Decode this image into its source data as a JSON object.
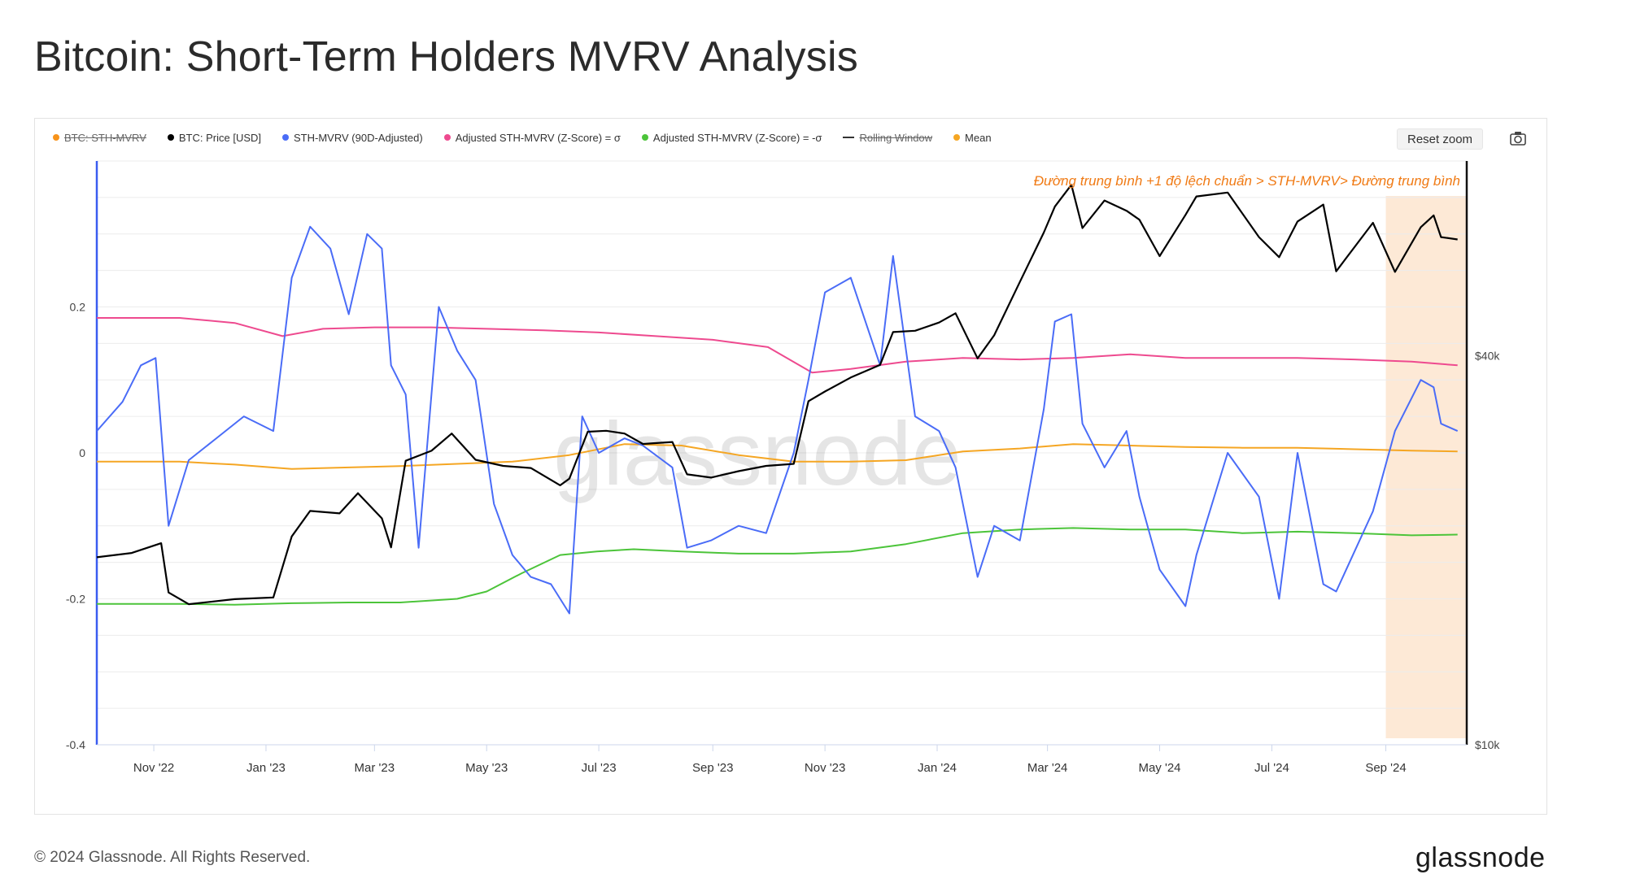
{
  "page": {
    "title": "Bitcoin: Short-Term Holders MVRV Analysis",
    "copyright": "© 2024 Glassnode. All Rights Reserved.",
    "logo": "glassnode"
  },
  "toolbar": {
    "reset_zoom": "Reset zoom",
    "camera_icon": "camera-icon"
  },
  "legend": [
    {
      "label": "BTC: STH-MVRV",
      "color": "#f7931a",
      "marker": "dot",
      "hidden": true
    },
    {
      "label": "BTC: Price [USD]",
      "color": "#000000",
      "marker": "dot",
      "hidden": false
    },
    {
      "label": "STH-MVRV (90D-Adjusted)",
      "color": "#4a6cf7",
      "marker": "dot",
      "hidden": false
    },
    {
      "label": "Adjusted STH-MVRV (Z-Score) = σ",
      "color": "#ee4a8f",
      "marker": "dot",
      "hidden": false
    },
    {
      "label": "Adjusted STH-MVRV (Z-Score) = -σ",
      "color": "#4cc43a",
      "marker": "dot",
      "hidden": false
    },
    {
      "label": "Rolling Window",
      "color": "#333333",
      "marker": "dash",
      "hidden": true
    },
    {
      "label": "Mean",
      "color": "#f5a623",
      "marker": "dot",
      "hidden": false
    }
  ],
  "annotation": "Đường trung bình +1 độ lệch chuẩn > STH-MVRV>  Đường trung bình",
  "watermark": "glassnode",
  "chart_data": {
    "type": "line",
    "x_ticks": [
      "Nov '22",
      "Jan '23",
      "Mar '23",
      "May '23",
      "Jul '23",
      "Sep '23",
      "Nov '23",
      "Jan '24",
      "Mar '24",
      "May '24",
      "Jul '24",
      "Sep '24"
    ],
    "y_left": {
      "ticks": [
        0.2,
        0,
        -0.2,
        -0.4
      ],
      "tick_labels": [
        "0.2",
        "0",
        "-0.2",
        "-0.4"
      ],
      "range": [
        -0.4,
        0.4
      ]
    },
    "y_right": {
      "scale": "log",
      "ticks": [
        40000,
        10000
      ],
      "tick_labels": [
        "$40k",
        "$10k"
      ],
      "range": [
        10000,
        80000
      ]
    },
    "x_range": [
      "2022-10-01",
      "2024-10-15"
    ],
    "highlight_region": {
      "from": "2024-09-01",
      "to": "2024-10-15",
      "color": "#fde9d6"
    },
    "series": [
      {
        "name": "BTC: Price [USD]",
        "color": "#000000",
        "axis": "right",
        "x": [
          "2022-10-01",
          "2022-10-20",
          "2022-11-05",
          "2022-11-09",
          "2022-11-20",
          "2022-12-15",
          "2023-01-05",
          "2023-01-15",
          "2023-01-25",
          "2023-02-10",
          "2023-02-20",
          "2023-03-05",
          "2023-03-10",
          "2023-03-18",
          "2023-04-01",
          "2023-04-12",
          "2023-04-25",
          "2023-05-10",
          "2023-05-25",
          "2023-06-10",
          "2023-06-15",
          "2023-06-25",
          "2023-07-05",
          "2023-07-15",
          "2023-07-25",
          "2023-08-10",
          "2023-08-18",
          "2023-08-31",
          "2023-09-15",
          "2023-09-30",
          "2023-10-15",
          "2023-10-23",
          "2023-11-01",
          "2023-11-15",
          "2023-12-01",
          "2023-12-08",
          "2023-12-20",
          "2024-01-02",
          "2024-01-11",
          "2024-01-23",
          "2024-02-01",
          "2024-02-15",
          "2024-02-28",
          "2024-03-05",
          "2024-03-14",
          "2024-03-20",
          "2024-04-01",
          "2024-04-13",
          "2024-04-20",
          "2024-05-01",
          "2024-05-15",
          "2024-05-21",
          "2024-06-07",
          "2024-06-24",
          "2024-07-05",
          "2024-07-15",
          "2024-07-29",
          "2024-08-05",
          "2024-08-25",
          "2024-09-06",
          "2024-09-20",
          "2024-09-27",
          "2024-10-01",
          "2024-10-10"
        ],
        "y": [
          19500,
          19800,
          20500,
          17200,
          16500,
          16800,
          16900,
          21000,
          23000,
          22800,
          24500,
          22400,
          20200,
          27500,
          28500,
          30300,
          27600,
          27000,
          26800,
          25200,
          25800,
          30500,
          30600,
          30300,
          29200,
          29400,
          26200,
          25900,
          26500,
          27000,
          27200,
          34000,
          35200,
          37000,
          38700,
          43500,
          43700,
          45000,
          46500,
          39600,
          43000,
          52000,
          62000,
          68000,
          73500,
          63000,
          69500,
          67000,
          64900,
          57000,
          66000,
          70500,
          71500,
          61000,
          56800,
          64500,
          68500,
          54000,
          64200,
          53900,
          63200,
          65900,
          61000,
          60500
        ]
      },
      {
        "name": "STH-MVRV (90D-Adjusted)",
        "color": "#4a6cf7",
        "axis": "left",
        "x": [
          "2022-10-01",
          "2022-10-15",
          "2022-10-25",
          "2022-11-02",
          "2022-11-09",
          "2022-11-20",
          "2022-12-05",
          "2022-12-20",
          "2023-01-05",
          "2023-01-15",
          "2023-01-25",
          "2023-02-05",
          "2023-02-15",
          "2023-02-25",
          "2023-03-05",
          "2023-03-10",
          "2023-03-18",
          "2023-03-25",
          "2023-04-05",
          "2023-04-15",
          "2023-04-25",
          "2023-05-05",
          "2023-05-15",
          "2023-05-25",
          "2023-06-05",
          "2023-06-15",
          "2023-06-22",
          "2023-07-01",
          "2023-07-15",
          "2023-07-25",
          "2023-08-10",
          "2023-08-18",
          "2023-08-31",
          "2023-09-15",
          "2023-09-30",
          "2023-10-15",
          "2023-10-23",
          "2023-11-01",
          "2023-11-15",
          "2023-12-01",
          "2023-12-08",
          "2023-12-20",
          "2024-01-02",
          "2024-01-11",
          "2024-01-23",
          "2024-02-01",
          "2024-02-15",
          "2024-02-28",
          "2024-03-05",
          "2024-03-14",
          "2024-03-20",
          "2024-04-01",
          "2024-04-13",
          "2024-04-20",
          "2024-05-01",
          "2024-05-15",
          "2024-05-21",
          "2024-06-07",
          "2024-06-24",
          "2024-07-05",
          "2024-07-15",
          "2024-07-29",
          "2024-08-05",
          "2024-08-25",
          "2024-09-06",
          "2024-09-20",
          "2024-09-27",
          "2024-10-01",
          "2024-10-10"
        ],
        "y": [
          0.03,
          0.07,
          0.12,
          0.13,
          -0.1,
          -0.01,
          0.02,
          0.05,
          0.03,
          0.24,
          0.31,
          0.28,
          0.19,
          0.3,
          0.28,
          0.12,
          0.08,
          -0.13,
          0.2,
          0.14,
          0.1,
          -0.07,
          -0.14,
          -0.17,
          -0.18,
          -0.22,
          0.05,
          0.0,
          0.02,
          0.01,
          -0.02,
          -0.13,
          -0.12,
          -0.1,
          -0.11,
          0.0,
          0.1,
          0.22,
          0.24,
          0.12,
          0.27,
          0.05,
          0.03,
          -0.02,
          -0.17,
          -0.1,
          -0.12,
          0.06,
          0.18,
          0.19,
          0.04,
          -0.02,
          0.03,
          -0.06,
          -0.16,
          -0.21,
          -0.14,
          0.0,
          -0.06,
          -0.2,
          0.0,
          -0.18,
          -0.19,
          -0.08,
          0.03,
          0.1,
          0.09,
          0.04,
          0.03
        ]
      },
      {
        "name": "Adjusted STH-MVRV (Z-Score) = σ",
        "color": "#ee4a8f",
        "axis": "left",
        "x": [
          "2022-10-01",
          "2022-11-15",
          "2022-12-15",
          "2023-01-10",
          "2023-02-01",
          "2023-03-01",
          "2023-04-01",
          "2023-05-01",
          "2023-06-01",
          "2023-07-01",
          "2023-08-01",
          "2023-09-01",
          "2023-10-01",
          "2023-10-25",
          "2023-11-15",
          "2023-12-15",
          "2024-01-15",
          "2024-02-15",
          "2024-03-15",
          "2024-04-15",
          "2024-05-15",
          "2024-06-15",
          "2024-07-15",
          "2024-08-15",
          "2024-09-15",
          "2024-10-10"
        ],
        "y": [
          0.185,
          0.185,
          0.178,
          0.16,
          0.17,
          0.172,
          0.172,
          0.17,
          0.168,
          0.165,
          0.16,
          0.155,
          0.145,
          0.11,
          0.115,
          0.125,
          0.13,
          0.128,
          0.13,
          0.135,
          0.13,
          0.13,
          0.13,
          0.128,
          0.125,
          0.12
        ]
      },
      {
        "name": "Adjusted STH-MVRV (Z-Score) = -σ",
        "color": "#4cc43a",
        "axis": "left",
        "x": [
          "2022-10-01",
          "2022-11-15",
          "2022-12-15",
          "2023-01-15",
          "2023-02-15",
          "2023-03-15",
          "2023-04-15",
          "2023-05-01",
          "2023-05-20",
          "2023-06-10",
          "2023-06-30",
          "2023-07-20",
          "2023-08-15",
          "2023-09-15",
          "2023-10-15",
          "2023-11-15",
          "2023-12-15",
          "2024-01-15",
          "2024-02-15",
          "2024-03-15",
          "2024-04-15",
          "2024-05-15",
          "2024-06-15",
          "2024-07-15",
          "2024-08-15",
          "2024-09-15",
          "2024-10-10"
        ],
        "y": [
          -0.207,
          -0.207,
          -0.208,
          -0.206,
          -0.205,
          -0.205,
          -0.2,
          -0.19,
          -0.165,
          -0.14,
          -0.135,
          -0.132,
          -0.135,
          -0.138,
          -0.138,
          -0.135,
          -0.125,
          -0.11,
          -0.105,
          -0.103,
          -0.105,
          -0.105,
          -0.11,
          -0.108,
          -0.11,
          -0.113,
          -0.112
        ]
      },
      {
        "name": "Mean",
        "color": "#f5a623",
        "axis": "left",
        "x": [
          "2022-10-01",
          "2022-11-15",
          "2022-12-15",
          "2023-01-15",
          "2023-02-15",
          "2023-03-15",
          "2023-04-15",
          "2023-05-15",
          "2023-06-15",
          "2023-07-15",
          "2023-08-15",
          "2023-09-15",
          "2023-10-15",
          "2023-11-15",
          "2023-12-15",
          "2024-01-15",
          "2024-02-15",
          "2024-03-15",
          "2024-04-15",
          "2024-05-15",
          "2024-06-15",
          "2024-07-15",
          "2024-08-15",
          "2024-09-15",
          "2024-10-10"
        ],
        "y": [
          -0.012,
          -0.012,
          -0.016,
          -0.022,
          -0.02,
          -0.018,
          -0.015,
          -0.012,
          -0.003,
          0.012,
          0.01,
          -0.003,
          -0.012,
          -0.012,
          -0.01,
          0.002,
          0.006,
          0.012,
          0.01,
          0.008,
          0.007,
          0.007,
          0.005,
          0.003,
          0.002
        ]
      }
    ]
  }
}
